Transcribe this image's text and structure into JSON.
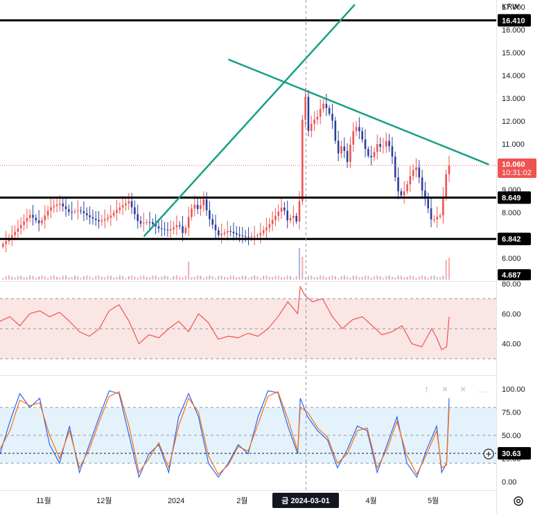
{
  "currency_label": "KRW",
  "chart_data": [
    {
      "type": "candlestick",
      "title": "",
      "ylim": [
        5.0,
        17.3
      ],
      "y_ticks": [
        "17.000",
        "16.000",
        "15.000",
        "14.000",
        "13.000",
        "12.000",
        "11.000",
        "10.000",
        "9.000",
        "8.000",
        "7.000",
        "6.000",
        "5.000"
      ],
      "x_labels": [
        "11월",
        "12월",
        "2024",
        "2월",
        "4월",
        "5월"
      ],
      "crosshair_label": "금 2024-03-01",
      "last_price": "10.060",
      "countdown": "10:31:02",
      "price_color_up": "#ef5350",
      "price_color_down": "#2a3f9d",
      "horizontal_levels": [
        {
          "price": 16.41,
          "label": "16.410"
        },
        {
          "price": 8.649,
          "label": "8.649"
        },
        {
          "price": 6.842,
          "label": "6.842"
        }
      ],
      "trendlines": [
        {
          "from": [
            0.29,
            6.95
          ],
          "to": [
            0.715,
            17.1
          ],
          "color": "#14a085"
        },
        {
          "from": [
            0.46,
            14.7
          ],
          "to": [
            0.985,
            10.1
          ],
          "color": "#14a085"
        }
      ],
      "volume_label": "4.687",
      "price_path": [
        [
          0.0,
          6.5
        ],
        [
          0.02,
          6.9
        ],
        [
          0.04,
          7.4
        ],
        [
          0.06,
          7.9
        ],
        [
          0.08,
          7.5
        ],
        [
          0.1,
          8.2
        ],
        [
          0.12,
          8.4
        ],
        [
          0.14,
          8.0
        ],
        [
          0.16,
          8.1
        ],
        [
          0.18,
          7.8
        ],
        [
          0.2,
          7.6
        ],
        [
          0.22,
          7.8
        ],
        [
          0.24,
          8.2
        ],
        [
          0.26,
          8.5
        ],
        [
          0.28,
          7.5
        ],
        [
          0.3,
          7.6
        ],
        [
          0.32,
          7.3
        ],
        [
          0.34,
          7.2
        ],
        [
          0.36,
          7.5
        ],
        [
          0.37,
          7.0
        ],
        [
          0.38,
          7.8
        ],
        [
          0.39,
          8.4
        ],
        [
          0.4,
          8.1
        ],
        [
          0.41,
          8.6
        ],
        [
          0.42,
          7.8
        ],
        [
          0.43,
          7.4
        ],
        [
          0.44,
          7.0
        ],
        [
          0.46,
          7.2
        ],
        [
          0.48,
          7.0
        ],
        [
          0.5,
          6.9
        ],
        [
          0.52,
          7.0
        ],
        [
          0.54,
          7.4
        ],
        [
          0.56,
          8.0
        ],
        [
          0.57,
          8.3
        ],
        [
          0.58,
          7.6
        ],
        [
          0.59,
          7.9
        ],
        [
          0.6,
          7.5
        ],
        [
          0.605,
          9.0
        ],
        [
          0.61,
          12.5
        ],
        [
          0.615,
          13.2
        ],
        [
          0.62,
          11.5
        ],
        [
          0.63,
          12.0
        ],
        [
          0.64,
          12.2
        ],
        [
          0.65,
          12.8
        ],
        [
          0.66,
          12.5
        ],
        [
          0.67,
          12.0
        ],
        [
          0.68,
          10.5
        ],
        [
          0.69,
          11.0
        ],
        [
          0.7,
          10.2
        ],
        [
          0.71,
          11.5
        ],
        [
          0.72,
          11.8
        ],
        [
          0.73,
          11.2
        ],
        [
          0.74,
          10.5
        ],
        [
          0.75,
          10.4
        ],
        [
          0.76,
          11.0
        ],
        [
          0.77,
          10.8
        ],
        [
          0.78,
          11.2
        ],
        [
          0.79,
          10.5
        ],
        [
          0.8,
          9.0
        ],
        [
          0.81,
          8.7
        ],
        [
          0.82,
          9.2
        ],
        [
          0.83,
          9.8
        ],
        [
          0.84,
          10.0
        ],
        [
          0.85,
          9.0
        ],
        [
          0.86,
          8.4
        ],
        [
          0.87,
          7.6
        ],
        [
          0.88,
          7.8
        ],
        [
          0.89,
          7.9
        ],
        [
          0.895,
          9.2
        ],
        [
          0.9,
          9.8
        ],
        [
          0.905,
          10.06
        ]
      ],
      "volume_spikes": [
        [
          0.38,
          1.0
        ],
        [
          0.605,
          2.4
        ],
        [
          0.61,
          1.5
        ],
        [
          0.9,
          1.2
        ],
        [
          0.905,
          1.4
        ]
      ]
    },
    {
      "type": "line",
      "ylim": [
        20,
        80
      ],
      "y_ticks": [
        "80.00",
        "60.00",
        "40.00"
      ],
      "band": [
        30,
        70
      ],
      "band_color": "#f6d5d3",
      "line_color": "#ef5350",
      "series": [
        {
          "values": [
            [
              0.0,
              55
            ],
            [
              0.02,
              58
            ],
            [
              0.04,
              52
            ],
            [
              0.06,
              60
            ],
            [
              0.08,
              62
            ],
            [
              0.1,
              58
            ],
            [
              0.12,
              61
            ],
            [
              0.14,
              55
            ],
            [
              0.16,
              48
            ],
            [
              0.18,
              45
            ],
            [
              0.2,
              50
            ],
            [
              0.22,
              62
            ],
            [
              0.24,
              66
            ],
            [
              0.26,
              55
            ],
            [
              0.28,
              40
            ],
            [
              0.3,
              46
            ],
            [
              0.32,
              44
            ],
            [
              0.34,
              50
            ],
            [
              0.36,
              55
            ],
            [
              0.38,
              48
            ],
            [
              0.4,
              60
            ],
            [
              0.42,
              54
            ],
            [
              0.44,
              43
            ],
            [
              0.46,
              45
            ],
            [
              0.48,
              44
            ],
            [
              0.5,
              47
            ],
            [
              0.52,
              45
            ],
            [
              0.54,
              50
            ],
            [
              0.56,
              58
            ],
            [
              0.58,
              68
            ],
            [
              0.6,
              60
            ],
            [
              0.605,
              78
            ],
            [
              0.615,
              72
            ],
            [
              0.63,
              68
            ],
            [
              0.65,
              70
            ],
            [
              0.67,
              58
            ],
            [
              0.69,
              50
            ],
            [
              0.71,
              56
            ],
            [
              0.73,
              58
            ],
            [
              0.75,
              52
            ],
            [
              0.77,
              46
            ],
            [
              0.79,
              48
            ],
            [
              0.81,
              52
            ],
            [
              0.83,
              40
            ],
            [
              0.85,
              38
            ],
            [
              0.87,
              50
            ],
            [
              0.88,
              44
            ],
            [
              0.89,
              36
            ],
            [
              0.9,
              38
            ],
            [
              0.905,
              58
            ]
          ]
        }
      ]
    },
    {
      "type": "line",
      "ylim": [
        0,
        100
      ],
      "y_ticks": [
        "100.00",
        "75.00",
        "50.00",
        "25.00",
        "0.00"
      ],
      "band": [
        20,
        80
      ],
      "band_color": "#d8ecf9",
      "current_value": "30.63",
      "series": [
        {
          "color": "#2962ff",
          "values": [
            [
              0.0,
              30
            ],
            [
              0.02,
              65
            ],
            [
              0.04,
              95
            ],
            [
              0.06,
              80
            ],
            [
              0.08,
              90
            ],
            [
              0.1,
              40
            ],
            [
              0.12,
              20
            ],
            [
              0.14,
              60
            ],
            [
              0.16,
              10
            ],
            [
              0.18,
              40
            ],
            [
              0.2,
              70
            ],
            [
              0.22,
              98
            ],
            [
              0.24,
              95
            ],
            [
              0.26,
              50
            ],
            [
              0.28,
              5
            ],
            [
              0.3,
              30
            ],
            [
              0.32,
              40
            ],
            [
              0.34,
              10
            ],
            [
              0.36,
              70
            ],
            [
              0.38,
              95
            ],
            [
              0.4,
              70
            ],
            [
              0.42,
              20
            ],
            [
              0.44,
              5
            ],
            [
              0.46,
              20
            ],
            [
              0.48,
              40
            ],
            [
              0.5,
              30
            ],
            [
              0.52,
              70
            ],
            [
              0.54,
              98
            ],
            [
              0.56,
              96
            ],
            [
              0.58,
              60
            ],
            [
              0.6,
              30
            ],
            [
              0.605,
              90
            ],
            [
              0.62,
              70
            ],
            [
              0.64,
              55
            ],
            [
              0.66,
              45
            ],
            [
              0.68,
              15
            ],
            [
              0.7,
              35
            ],
            [
              0.72,
              60
            ],
            [
              0.74,
              55
            ],
            [
              0.76,
              10
            ],
            [
              0.78,
              40
            ],
            [
              0.8,
              70
            ],
            [
              0.82,
              20
            ],
            [
              0.84,
              5
            ],
            [
              0.86,
              35
            ],
            [
              0.88,
              60
            ],
            [
              0.89,
              10
            ],
            [
              0.9,
              20
            ],
            [
              0.905,
              90
            ]
          ]
        },
        {
          "color": "#ff6d00",
          "values": [
            [
              0.0,
              35
            ],
            [
              0.02,
              55
            ],
            [
              0.04,
              88
            ],
            [
              0.06,
              82
            ],
            [
              0.08,
              85
            ],
            [
              0.1,
              50
            ],
            [
              0.12,
              25
            ],
            [
              0.14,
              55
            ],
            [
              0.16,
              15
            ],
            [
              0.18,
              35
            ],
            [
              0.2,
              65
            ],
            [
              0.22,
              92
            ],
            [
              0.24,
              97
            ],
            [
              0.26,
              60
            ],
            [
              0.28,
              10
            ],
            [
              0.3,
              25
            ],
            [
              0.32,
              42
            ],
            [
              0.34,
              15
            ],
            [
              0.36,
              60
            ],
            [
              0.38,
              90
            ],
            [
              0.4,
              75
            ],
            [
              0.42,
              28
            ],
            [
              0.44,
              8
            ],
            [
              0.46,
              18
            ],
            [
              0.48,
              38
            ],
            [
              0.5,
              33
            ],
            [
              0.52,
              62
            ],
            [
              0.54,
              92
            ],
            [
              0.56,
              97
            ],
            [
              0.58,
              68
            ],
            [
              0.6,
              33
            ],
            [
              0.605,
              80
            ],
            [
              0.62,
              75
            ],
            [
              0.64,
              58
            ],
            [
              0.66,
              48
            ],
            [
              0.68,
              20
            ],
            [
              0.7,
              30
            ],
            [
              0.72,
              55
            ],
            [
              0.74,
              58
            ],
            [
              0.76,
              15
            ],
            [
              0.78,
              35
            ],
            [
              0.8,
              65
            ],
            [
              0.82,
              28
            ],
            [
              0.84,
              8
            ],
            [
              0.86,
              30
            ],
            [
              0.88,
              55
            ],
            [
              0.89,
              15
            ],
            [
              0.9,
              18
            ],
            [
              0.905,
              80
            ]
          ]
        }
      ]
    }
  ]
}
